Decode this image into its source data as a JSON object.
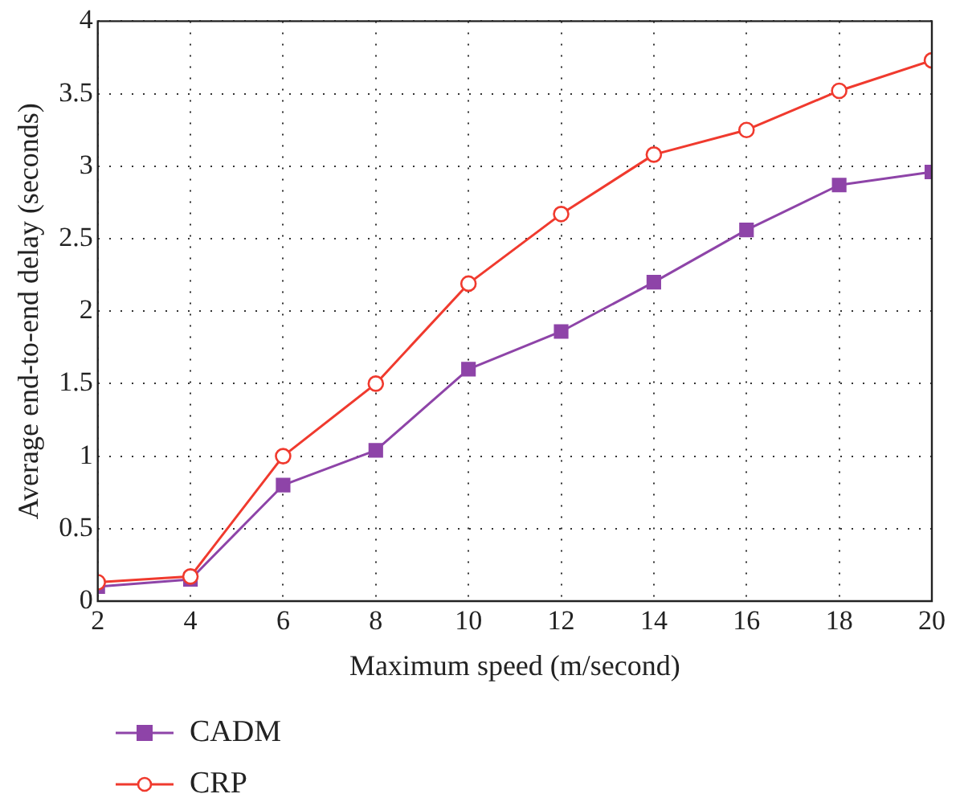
{
  "chart_data": {
    "type": "line",
    "xlabel": "Maximum speed (m/second)",
    "ylabel": "Average end-to-end delay (seconds)",
    "x": [
      2,
      4,
      6,
      8,
      10,
      12,
      14,
      16,
      18,
      20
    ],
    "series": [
      {
        "name": "CADM",
        "color": "#8e44a8",
        "marker": "square",
        "values": [
          0.1,
          0.15,
          0.8,
          1.04,
          1.6,
          1.86,
          2.2,
          2.56,
          2.87,
          2.96
        ]
      },
      {
        "name": "CRP",
        "color": "#f03a2e",
        "marker": "circle",
        "values": [
          0.13,
          0.17,
          1.0,
          1.5,
          2.19,
          2.67,
          3.08,
          3.25,
          3.52,
          3.73
        ]
      }
    ],
    "xlim": [
      2,
      20
    ],
    "xticks": [
      2,
      4,
      6,
      8,
      10,
      12,
      14,
      16,
      18,
      20
    ],
    "ylim": [
      0,
      4
    ],
    "yticks": [
      0,
      0.5,
      1,
      1.5,
      2,
      2.5,
      3,
      3.5,
      4
    ],
    "grid": true,
    "legend": "bottom left",
    "line_style": "solid"
  }
}
